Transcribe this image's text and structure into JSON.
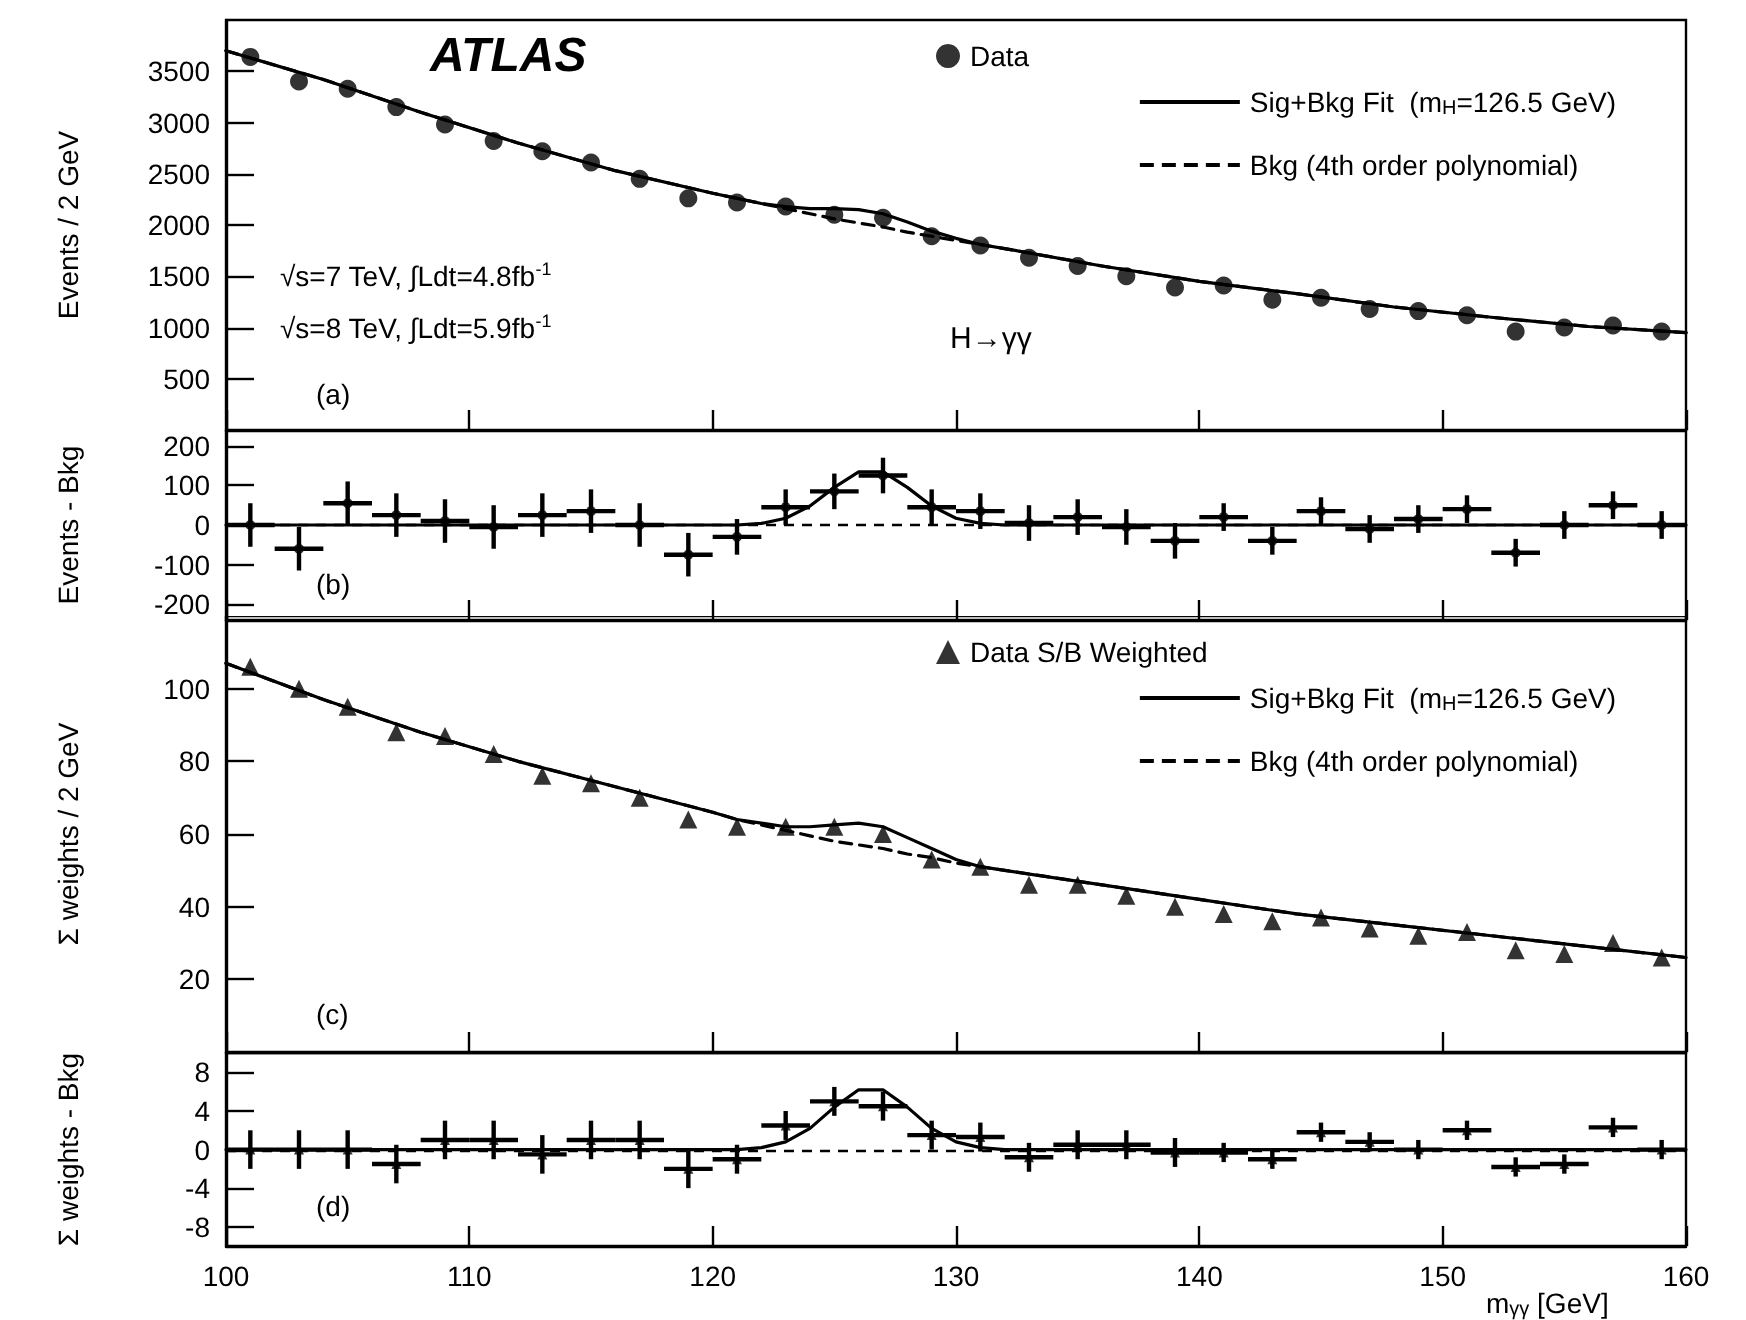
{
  "chart_data": [
    {
      "type": "scatter",
      "ylabel": "Events / 2 GeV",
      "xlim": [
        100,
        160
      ],
      "xticks": [
        100,
        110,
        120,
        130,
        140,
        150,
        160
      ],
      "ylim": [
        0,
        4000
      ],
      "yticks": [
        500,
        1000,
        1500,
        2000,
        2500,
        3000,
        3500
      ],
      "tick_labels": "y",
      "legend": "top right",
      "grid": false,
      "annotations": [
        "ATLAS",
        "√s=7 TeV, ∫Ldt=4.8fb$^{-1}$",
        "√s=8 TeV, ∫Ldt=5.9fb$^{-1}$",
        "H→γγ",
        "(a)"
      ],
      "series": [
        {
          "name": "Data",
          "marker": "circle",
          "color": "#000000",
          "x": [
            101,
            103,
            105,
            107,
            109,
            111,
            113,
            115,
            117,
            119,
            121,
            123,
            125,
            127,
            129,
            131,
            133,
            135,
            137,
            139,
            141,
            143,
            145,
            147,
            149,
            151,
            153,
            155,
            157,
            159
          ],
          "values": [
            3640,
            3400,
            3330,
            3150,
            2980,
            2820,
            2720,
            2610,
            2450,
            2260,
            2220,
            2180,
            2100,
            2070,
            1890,
            1800,
            1680,
            1600,
            1500,
            1390,
            1410,
            1270,
            1290,
            1180,
            1160,
            1120,
            960,
            1000,
            1020,
            960
          ]
        },
        {
          "name": "Sig+Bkg Fit  (m$_{H}$=126.5 GeV)",
          "type": "line",
          "line_style": "solid",
          "color": "#000000",
          "x": [
            100,
            104,
            108,
            112,
            116,
            120,
            121,
            122,
            123,
            124,
            125,
            126,
            127,
            128,
            129,
            130,
            131,
            132,
            136,
            140,
            144,
            148,
            152,
            156,
            160
          ],
          "values": [
            3700,
            3420,
            3100,
            2800,
            2530,
            2310,
            2260,
            2210,
            2180,
            2160,
            2160,
            2150,
            2110,
            2030,
            1940,
            1870,
            1810,
            1770,
            1600,
            1450,
            1330,
            1200,
            1100,
            1010,
            950
          ]
        },
        {
          "name": "Bkg (4th order polynomial)",
          "type": "line",
          "line_style": "dashed",
          "color": "#000000",
          "x": [
            100,
            104,
            108,
            112,
            116,
            120,
            121,
            122,
            123,
            124,
            125,
            126,
            127,
            128,
            129,
            130,
            131,
            132,
            136,
            140,
            144,
            148,
            152,
            156,
            160
          ],
          "values": [
            3700,
            3420,
            3100,
            2800,
            2530,
            2310,
            2260,
            2210,
            2160,
            2110,
            2060,
            2020,
            1980,
            1930,
            1890,
            1850,
            1810,
            1770,
            1600,
            1450,
            1330,
            1200,
            1100,
            1010,
            950
          ]
        }
      ]
    },
    {
      "type": "scatter",
      "ylabel": "Events - Bkg",
      "xlim": [
        100,
        160
      ],
      "xticks": [
        100,
        110,
        120,
        130,
        140,
        150,
        160
      ],
      "ylim": [
        -240,
        240
      ],
      "yticks": [
        -200,
        -100,
        0,
        100,
        200
      ],
      "tick_labels": "y",
      "grid": false,
      "annotations": [
        "(b)"
      ],
      "series": [
        {
          "marker": "circle",
          "color": "#000000",
          "x": [
            101,
            103,
            105,
            107,
            109,
            111,
            113,
            115,
            117,
            119,
            121,
            123,
            125,
            127,
            129,
            131,
            133,
            135,
            137,
            139,
            141,
            143,
            145,
            147,
            149,
            151,
            153,
            155,
            157,
            159
          ],
          "values": [
            0,
            -60,
            55,
            25,
            10,
            -5,
            25,
            35,
            0,
            -75,
            -30,
            45,
            85,
            125,
            45,
            35,
            5,
            20,
            -5,
            -40,
            20,
            -40,
            35,
            -10,
            15,
            40,
            -70,
            0,
            50,
            0
          ],
          "errors": [
            55,
            55,
            55,
            55,
            55,
            55,
            55,
            55,
            55,
            55,
            45,
            45,
            45,
            45,
            45,
            45,
            45,
            45,
            45,
            45,
            35,
            35,
            35,
            35,
            35,
            35,
            35,
            35,
            35,
            35
          ],
          "xerrors": [
            1,
            1,
            1,
            1,
            1,
            1,
            1,
            1,
            1,
            1,
            1,
            1,
            1,
            1,
            1,
            1,
            1,
            1,
            1,
            1,
            1,
            1,
            1,
            1,
            1,
            1,
            1,
            1,
            1,
            1
          ]
        },
        {
          "type": "line",
          "line_style": "solid",
          "color": "#000000",
          "x": [
            100,
            121,
            122,
            123,
            124,
            125,
            126,
            127,
            128,
            129,
            130,
            131,
            132,
            160
          ],
          "values": [
            0,
            0,
            4,
            17,
            48,
            95,
            134,
            134,
            95,
            48,
            17,
            4,
            0,
            0
          ]
        }
      ],
      "ref_lines": [
        {
          "axis": "y",
          "value": 0,
          "color": "#000000",
          "line_style": "dashed"
        }
      ]
    },
    {
      "type": "scatter",
      "ylabel": "Σ weights / 2 GeV",
      "xlim": [
        100,
        160
      ],
      "xticks": [
        100,
        110,
        120,
        130,
        140,
        150,
        160
      ],
      "ylim": [
        0,
        120
      ],
      "yticks": [
        20,
        40,
        60,
        80,
        100
      ],
      "tick_labels": "y",
      "legend": "top right",
      "grid": false,
      "annotations": [
        "(c)"
      ],
      "series": [
        {
          "name": "Data S/B Weighted",
          "marker": "triangle",
          "color": "#000000",
          "x": [
            101,
            103,
            105,
            107,
            109,
            111,
            113,
            115,
            117,
            119,
            121,
            123,
            125,
            127,
            129,
            131,
            133,
            135,
            137,
            139,
            141,
            143,
            145,
            147,
            149,
            151,
            153,
            155,
            157,
            159
          ],
          "values": [
            106,
            100,
            95,
            88,
            87,
            82,
            76,
            74,
            70,
            64,
            62,
            62,
            62,
            60,
            53,
            51,
            46,
            46,
            43,
            40,
            38,
            36,
            37,
            34,
            32,
            33,
            28,
            27,
            30,
            26
          ]
        },
        {
          "name": "Sig+Bkg Fit  (m$_{H}$=126.5 GeV)",
          "type": "line",
          "line_style": "solid",
          "color": "#000000",
          "x": [
            100,
            104,
            108,
            112,
            116,
            120,
            121,
            122,
            123,
            124,
            125,
            126,
            127,
            128,
            129,
            130,
            131,
            132,
            136,
            140,
            144,
            148,
            152,
            156,
            160
          ],
          "values": [
            107,
            97,
            88,
            80,
            73,
            66,
            64,
            63,
            62,
            62,
            62.5,
            63,
            62,
            59,
            56,
            53,
            51,
            50,
            46,
            42,
            38,
            35,
            32,
            29,
            26
          ]
        },
        {
          "name": "Bkg (4th order polynomial)",
          "type": "line",
          "line_style": "dashed",
          "color": "#000000",
          "x": [
            100,
            104,
            108,
            112,
            116,
            120,
            121,
            122,
            123,
            124,
            125,
            126,
            127,
            128,
            129,
            130,
            131,
            132,
            136,
            140,
            144,
            148,
            152,
            156,
            160
          ],
          "values": [
            107,
            97,
            88,
            80,
            73,
            66,
            64,
            62.5,
            61,
            59.5,
            58,
            57,
            56,
            54.5,
            53.5,
            52,
            51,
            50,
            46,
            42,
            38,
            35,
            32,
            29,
            26
          ]
        }
      ]
    },
    {
      "type": "scatter",
      "ylabel": "Σ weights - Bkg",
      "xlabel": "m$_{γγ}$ [GeV]",
      "xlim": [
        100,
        160
      ],
      "xticks": [
        100,
        110,
        120,
        130,
        140,
        150,
        160
      ],
      "ylim": [
        -10,
        10
      ],
      "yticks": [
        -8,
        -4,
        0,
        4,
        8
      ],
      "grid": false,
      "annotations": [
        "(d)"
      ],
      "series": [
        {
          "marker": "triangle",
          "color": "#000000",
          "x": [
            101,
            103,
            105,
            107,
            109,
            111,
            113,
            115,
            117,
            119,
            121,
            123,
            125,
            127,
            129,
            131,
            133,
            135,
            137,
            139,
            141,
            143,
            145,
            147,
            149,
            151,
            153,
            155,
            157,
            159
          ],
          "values": [
            0,
            0,
            0,
            -1.5,
            1,
            1,
            -0.5,
            1,
            1,
            -2,
            -1,
            2.5,
            5,
            4.5,
            1.5,
            1.3,
            -0.8,
            0.5,
            0.5,
            -0.3,
            -0.3,
            -1,
            1.8,
            0.8,
            0,
            2,
            -1.8,
            -1.5,
            2.3,
            0
          ],
          "errors": [
            2,
            2,
            2,
            2,
            2,
            2,
            2,
            2,
            2,
            2,
            1.5,
            1.5,
            1.5,
            1.5,
            1.5,
            1.5,
            1.5,
            1.5,
            1.5,
            1.5,
            1,
            1,
            1,
            1,
            1,
            1,
            1,
            1,
            1,
            1
          ],
          "xerrors": [
            1,
            1,
            1,
            1,
            1,
            1,
            1,
            1,
            1,
            1,
            1,
            1,
            1,
            1,
            1,
            1,
            1,
            1,
            1,
            1,
            1,
            1,
            1,
            1,
            1,
            1,
            1,
            1,
            1,
            1
          ]
        },
        {
          "type": "line",
          "line_style": "solid",
          "color": "#000000",
          "x": [
            100,
            121,
            122,
            123,
            124,
            125,
            126,
            127,
            128,
            129,
            130,
            131,
            132,
            160
          ],
          "values": [
            0,
            0,
            0.2,
            0.8,
            2.2,
            4.4,
            6.2,
            6.2,
            4.4,
            2.2,
            0.8,
            0.2,
            0,
            0
          ]
        }
      ],
      "ref_lines": [
        {
          "axis": "y",
          "value": 0,
          "color": "#000000",
          "line_style": "dashed"
        }
      ]
    }
  ]
}
